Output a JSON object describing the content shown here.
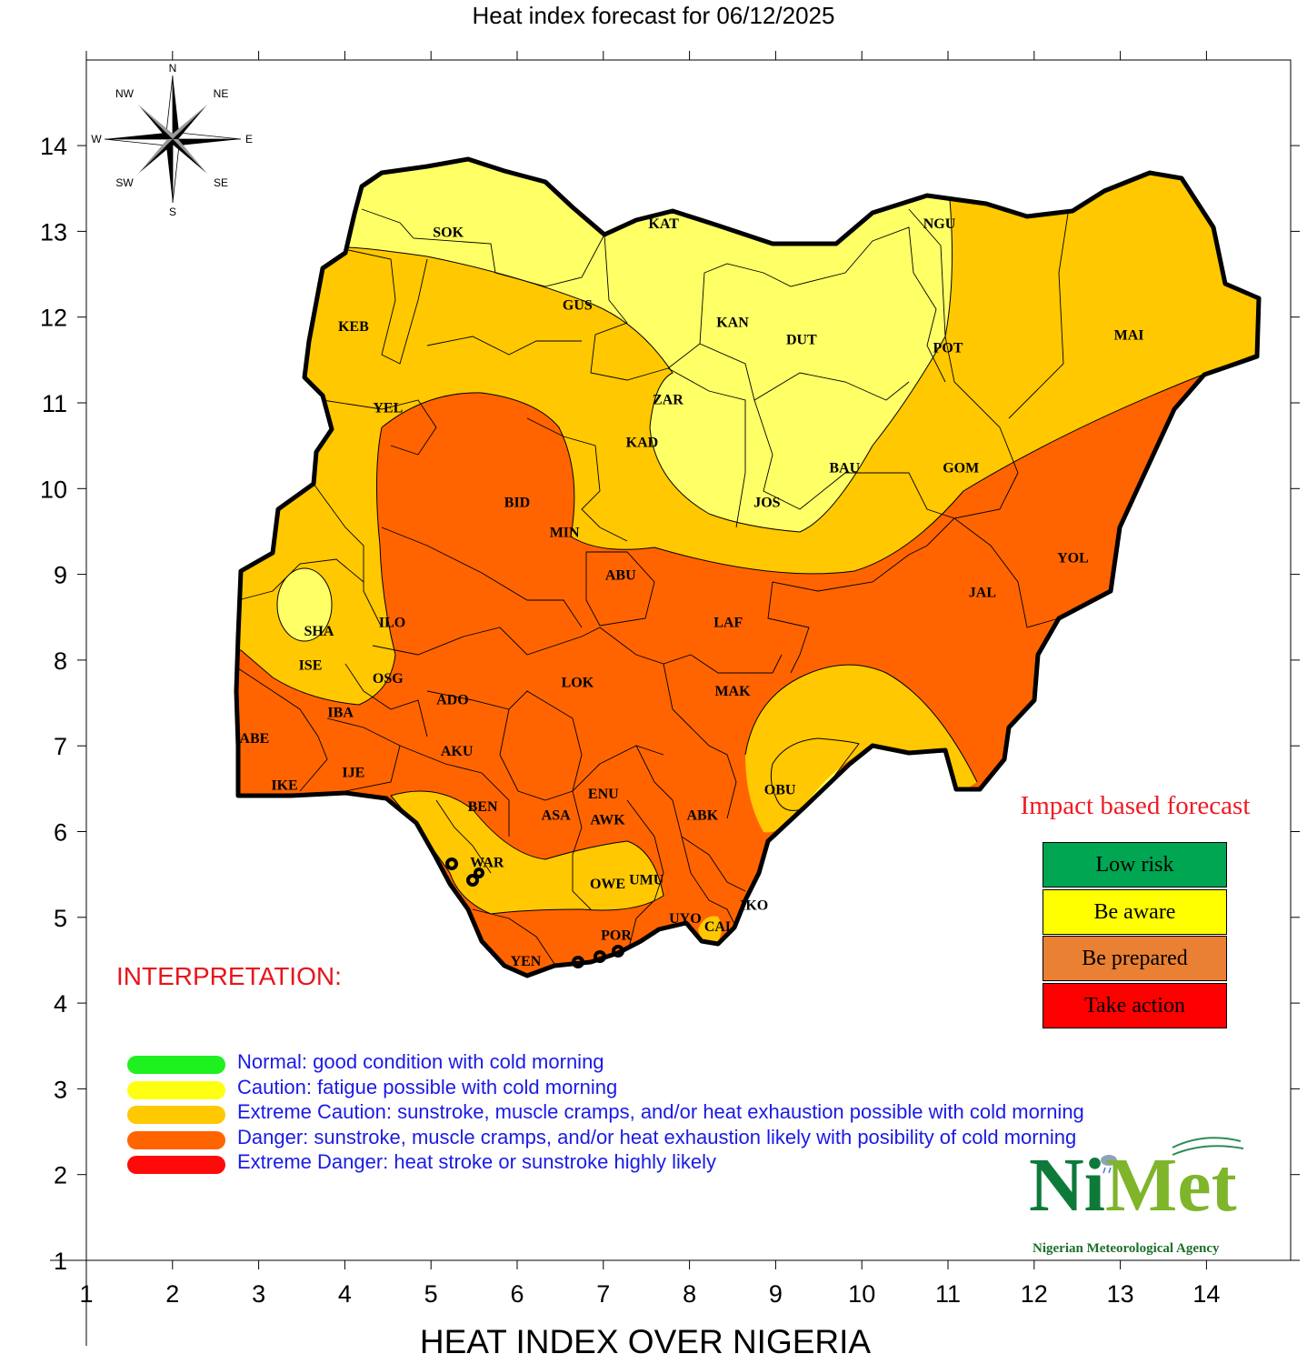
{
  "title": "Heat index forecast for 06/12/2025",
  "bottom_title": "HEAT INDEX OVER NIGERIA",
  "axes": {
    "x_ticks": [
      "1",
      "2",
      "3",
      "4",
      "5",
      "6",
      "7",
      "8",
      "9",
      "10",
      "11",
      "12",
      "13",
      "14"
    ],
    "y_ticks": [
      "1",
      "2",
      "3",
      "4",
      "5",
      "6",
      "7",
      "8",
      "9",
      "10",
      "11",
      "12",
      "13",
      "14"
    ]
  },
  "compass": {
    "north": "N",
    "south": "S",
    "east": "E",
    "west": "W",
    "ne": "NE",
    "nw": "NW",
    "se": "SE",
    "sw": "SW"
  },
  "state_labels": [
    {
      "name": "SOK",
      "lon": 5.2,
      "lat": 13.0
    },
    {
      "name": "KAT",
      "lon": 7.7,
      "lat": 13.1
    },
    {
      "name": "NGU",
      "lon": 10.9,
      "lat": 13.1
    },
    {
      "name": "GUS",
      "lon": 6.7,
      "lat": 12.15
    },
    {
      "name": "KAN",
      "lon": 8.5,
      "lat": 11.95
    },
    {
      "name": "KEB",
      "lon": 4.1,
      "lat": 11.9
    },
    {
      "name": "DUT",
      "lon": 9.3,
      "lat": 11.75
    },
    {
      "name": "POT",
      "lon": 11.0,
      "lat": 11.65
    },
    {
      "name": "MAI",
      "lon": 13.1,
      "lat": 11.8
    },
    {
      "name": "ZAR",
      "lon": 7.75,
      "lat": 11.05
    },
    {
      "name": "YEL",
      "lon": 4.5,
      "lat": 10.95
    },
    {
      "name": "KAD",
      "lon": 7.45,
      "lat": 10.55
    },
    {
      "name": "BAU",
      "lon": 9.8,
      "lat": 10.25
    },
    {
      "name": "GOM",
      "lon": 11.15,
      "lat": 10.25
    },
    {
      "name": "BID",
      "lon": 6.0,
      "lat": 9.85
    },
    {
      "name": "JOS",
      "lon": 8.9,
      "lat": 9.85
    },
    {
      "name": "MIN",
      "lon": 6.55,
      "lat": 9.5
    },
    {
      "name": "ABU",
      "lon": 7.2,
      "lat": 9.0
    },
    {
      "name": "YOL",
      "lon": 12.45,
      "lat": 9.2
    },
    {
      "name": "JAL",
      "lon": 11.4,
      "lat": 8.8
    },
    {
      "name": "SHA",
      "lon": 3.7,
      "lat": 8.35
    },
    {
      "name": "ILO",
      "lon": 4.55,
      "lat": 8.45
    },
    {
      "name": "LAF",
      "lon": 8.45,
      "lat": 8.45
    },
    {
      "name": "ISE",
      "lon": 3.6,
      "lat": 7.95
    },
    {
      "name": "OSG",
      "lon": 4.5,
      "lat": 7.8
    },
    {
      "name": "LOK",
      "lon": 6.7,
      "lat": 7.75
    },
    {
      "name": "MAK",
      "lon": 8.5,
      "lat": 7.65
    },
    {
      "name": "ADO",
      "lon": 5.25,
      "lat": 7.55
    },
    {
      "name": "IBA",
      "lon": 3.95,
      "lat": 7.4
    },
    {
      "name": "ABE",
      "lon": 2.95,
      "lat": 7.1
    },
    {
      "name": "AKU",
      "lon": 5.3,
      "lat": 6.95
    },
    {
      "name": "IJE",
      "lon": 4.1,
      "lat": 6.7
    },
    {
      "name": "IKE",
      "lon": 3.3,
      "lat": 6.55
    },
    {
      "name": "OBU",
      "lon": 9.05,
      "lat": 6.5
    },
    {
      "name": "ENU",
      "lon": 7.0,
      "lat": 6.45
    },
    {
      "name": "BEN",
      "lon": 5.6,
      "lat": 6.3
    },
    {
      "name": "ASA",
      "lon": 6.45,
      "lat": 6.2
    },
    {
      "name": "AWK",
      "lon": 7.05,
      "lat": 6.15
    },
    {
      "name": "ABK",
      "lon": 8.15,
      "lat": 6.2
    },
    {
      "name": "WAR",
      "lon": 5.65,
      "lat": 5.65
    },
    {
      "name": "OWE",
      "lon": 7.05,
      "lat": 5.4
    },
    {
      "name": "UMU",
      "lon": 7.5,
      "lat": 5.45
    },
    {
      "name": "IKO",
      "lon": 8.75,
      "lat": 5.15
    },
    {
      "name": "UYO",
      "lon": 7.95,
      "lat": 5.0
    },
    {
      "name": "CAL",
      "lon": 8.35,
      "lat": 4.9
    },
    {
      "name": "POR",
      "lon": 7.15,
      "lat": 4.8
    },
    {
      "name": "YEN",
      "lon": 6.1,
      "lat": 4.5
    }
  ],
  "impact_forecast": {
    "title": "Impact based forecast",
    "levels": [
      {
        "label": "Low risk",
        "color": "#00a651"
      },
      {
        "label": "Be aware",
        "color": "#ffff00"
      },
      {
        "label": "Be prepared",
        "color": "#e98033"
      },
      {
        "label": "Take action",
        "color": "#ff0000"
      }
    ]
  },
  "interpretation": {
    "heading": "INTERPRETATION:",
    "items": [
      {
        "color": "#1ff01f",
        "text": "Normal: good condition with cold morning"
      },
      {
        "color": "#ffff14",
        "text": "Caution: fatigue possible  with cold morning"
      },
      {
        "color": "#ffc800",
        "text": "Extreme Caution: sunstroke, muscle cramps, and/or heat exhaustion possible  with cold morning"
      },
      {
        "color": "#ff6400",
        "text": "Danger: sunstroke, muscle cramps, and/or heat exhaustion likely with posibility of cold morning"
      },
      {
        "color": "#ff0a0a",
        "text": "Extreme Danger: heat stroke or sunstroke highly likely"
      }
    ]
  },
  "zone_colors": {
    "caution": "#ffff66",
    "extreme_caution": "#ffc800",
    "danger": "#ff6400"
  },
  "logo": {
    "ni": "Ni",
    "met": "Met",
    "subtitle": "Nigerian Meteorological Agency"
  }
}
